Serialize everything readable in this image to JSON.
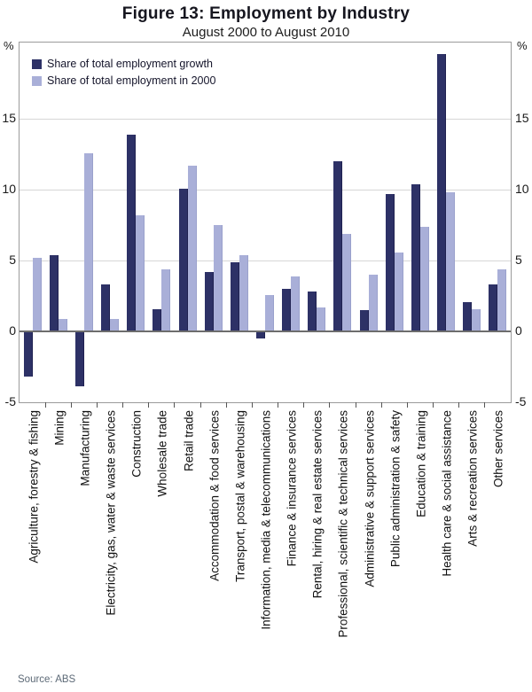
{
  "header": {
    "title": "Figure 13: Employment by Industry",
    "subtitle": "August 2000 to August 2010"
  },
  "axes": {
    "unit_left": "%",
    "unit_right": "%"
  },
  "footer": {
    "source": "Source:  ABS"
  },
  "chart_data": {
    "type": "bar",
    "title": "Figure 13: Employment by Industry",
    "subtitle": "August 2000 to August 2010",
    "ylabel": "%",
    "ylim": [
      -5,
      20.4
    ],
    "yticks": [
      -5,
      0,
      5,
      10,
      15
    ],
    "grid": true,
    "legend_position": "top-left",
    "source": "Source: ABS",
    "categories": [
      "Agriculture, forestry & fishing",
      "Mining",
      "Manufacturing",
      "Electricity, gas, water & waste services",
      "Construction",
      "Wholesale trade",
      "Retail trade",
      "Accommodation & food services",
      "Transport, postal & warehousing",
      "Information, media & telecommunications",
      "Finance & insurance services",
      "Rental, hiring & real estate services",
      "Professional, scientific & technical services",
      "Administrative & support services",
      "Public administration & safety",
      "Education & training",
      "Health care & social assistance",
      "Arts & recreation services",
      "Other services"
    ],
    "series": [
      {
        "name": "Share of total employment growth",
        "color": "#2d3166",
        "values": [
          -3.2,
          5.4,
          -3.9,
          3.3,
          13.9,
          1.6,
          10.1,
          4.2,
          4.9,
          -0.5,
          3.0,
          2.8,
          12.0,
          1.5,
          9.7,
          10.4,
          19.6,
          2.1,
          3.3
        ]
      },
      {
        "name": "Share of total employment in 2000",
        "color": "#a9afd8",
        "values": [
          5.2,
          0.9,
          12.6,
          0.9,
          8.2,
          4.4,
          11.7,
          7.5,
          5.4,
          2.6,
          3.9,
          1.7,
          6.9,
          4.0,
          5.6,
          7.4,
          9.8,
          1.6,
          4.4
        ]
      }
    ]
  }
}
